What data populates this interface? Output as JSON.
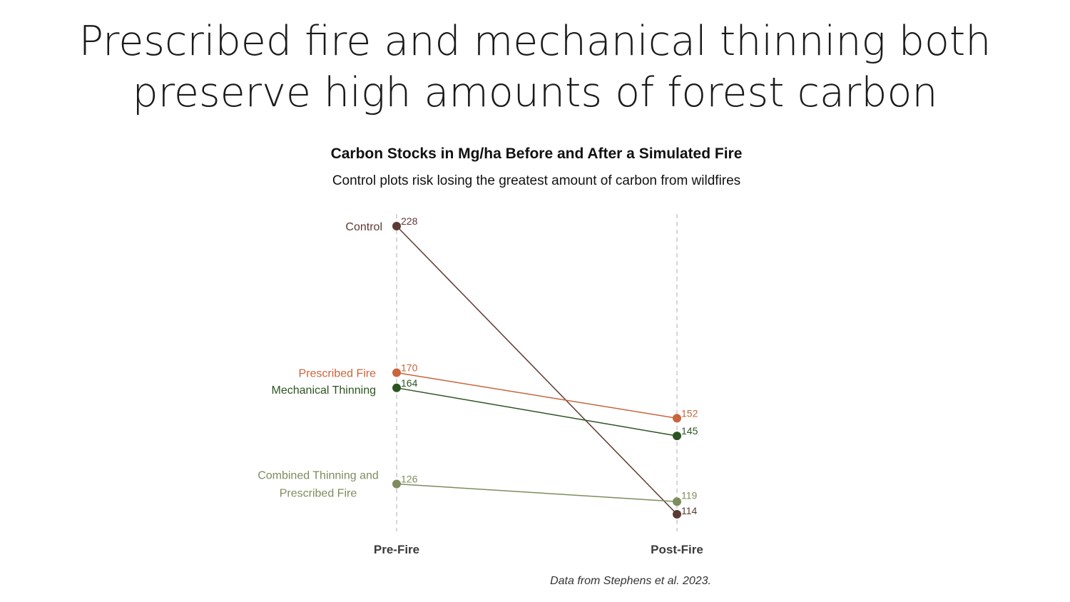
{
  "slide": {
    "title_line1": "Prescribed fire and mechanical thinning both",
    "title_line2": "preserve high amounts of forest carbon",
    "caption": "Data from Stephens et al. 2023."
  },
  "chart_data": {
    "type": "line",
    "title": "Carbon Stocks in Mg/ha Before and After a Simulated Fire",
    "subtitle": "Control plots risk losing the greatest amount of carbon from wildfires",
    "categories": [
      "Pre-Fire",
      "Post-Fire"
    ],
    "ylim": [
      114,
      228
    ],
    "grid": "dashed vertical lines at each category",
    "legend": "none",
    "series": [
      {
        "name": "Control",
        "label_lines": [
          "Control"
        ],
        "values": [
          228,
          114
        ],
        "color": "#5c3a31"
      },
      {
        "name": "Prescribed Fire",
        "label_lines": [
          "Prescribed Fire"
        ],
        "values": [
          170,
          152
        ],
        "color": "#c8653a"
      },
      {
        "name": "Mechanical Thinning",
        "label_lines": [
          "Mechanical Thinning"
        ],
        "values": [
          164,
          145
        ],
        "color": "#2c5422"
      },
      {
        "name": "Combined Thinning and Prescribed Fire",
        "label_lines": [
          "Combined Thinning and",
          "Prescribed Fire"
        ],
        "values": [
          126,
          119
        ],
        "color": "#7e8c5e"
      }
    ]
  }
}
